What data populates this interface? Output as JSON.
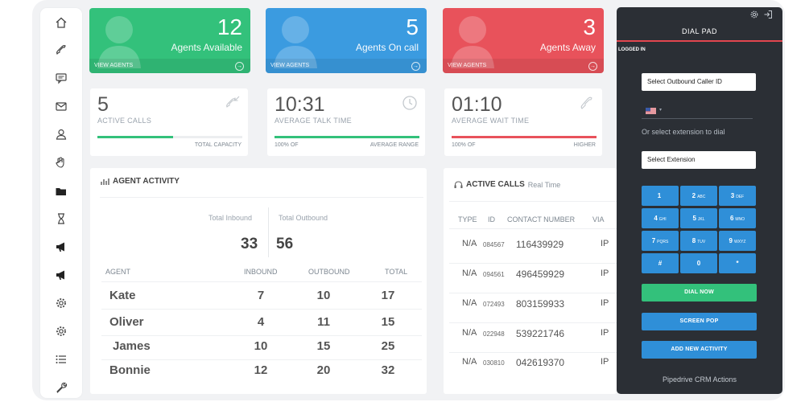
{
  "colors": {
    "green": "#33c17b",
    "blue": "#3b9be0",
    "red": "#e8525b",
    "dial_bg": "#2b2f35",
    "key_blue": "#2f8fd8"
  },
  "sidebar": {
    "icons": [
      "home-icon",
      "phone-icon",
      "chat-icon",
      "mail-icon",
      "user-icon",
      "hand-icon",
      "folder-icon",
      "hourglass-icon",
      "megaphone-icon",
      "megaphone-icon",
      "gear-icon",
      "gear-icon",
      "list-icon",
      "wrench-icon"
    ]
  },
  "stats": [
    {
      "value": "12",
      "label": "Agents Available",
      "link": "VIEW AGENTS"
    },
    {
      "value": "5",
      "label": "Agents On call",
      "link": "VIEW AGENTS"
    },
    {
      "value": "3",
      "label": "Agents Away",
      "link": "VIEW AGENTS"
    }
  ],
  "metrics": [
    {
      "value": "5",
      "label": "ACTIVE CALLS",
      "foot_left": "",
      "foot_right": "TOTAL CAPACITY",
      "progress": 0.52
    },
    {
      "value": "10:31",
      "label": "AVERAGE TALK TIME",
      "foot_left": "100% OF",
      "foot_right": "AVERAGE RANGE",
      "progress": 1.0
    },
    {
      "value": "01:10",
      "label": "AVERAGE WAIT TIME",
      "foot_left": "100% OF",
      "foot_right": "HIGHER",
      "progress": 1.0
    }
  ],
  "agent_activity": {
    "title": "AGENT ACTIVITY",
    "total_inbound_label": "Total Inbound",
    "total_outbound_label": "Total Outbound",
    "total_inbound": "33",
    "total_outbound": "56",
    "headers": [
      "AGENT",
      "INBOUND",
      "OUTBOUND",
      "TOTAL"
    ],
    "rows": [
      {
        "agent": "Kate",
        "inbound": "7",
        "outbound": "10",
        "total": "17"
      },
      {
        "agent": "Oliver",
        "inbound": "4",
        "outbound": "11",
        "total": "15"
      },
      {
        "agent": "James",
        "inbound": "10",
        "outbound": "15",
        "total": "25"
      },
      {
        "agent": "Bonnie",
        "inbound": "12",
        "outbound": "20",
        "total": "32"
      }
    ]
  },
  "active_calls": {
    "title": "ACTIVE CALLS",
    "subtitle": "Real Time",
    "headers": [
      "TYPE",
      "ID",
      "CONTACT NUMBER",
      "VIA"
    ],
    "rows": [
      {
        "type": "N/A",
        "id": "084567",
        "number": "116439929",
        "via": "IP"
      },
      {
        "type": "N/A",
        "id": "094561",
        "number": "496459929",
        "via": "IP"
      },
      {
        "type": "N/A",
        "id": "072493",
        "number": "803159933",
        "via": "IP"
      },
      {
        "type": "N/A",
        "id": "022948",
        "number": "539221746",
        "via": "IP"
      },
      {
        "type": "N/A",
        "id": "030810",
        "number": "042619370",
        "via": "IP"
      }
    ]
  },
  "dialpad": {
    "title": "DIAL PAD",
    "status": "LOGGED IN",
    "caller_id_select": "Select Outbound Caller ID",
    "or_text": "Or select extension to dial",
    "extension_select": "Select Extension",
    "keys": [
      {
        "digit": "1",
        "letters": ""
      },
      {
        "digit": "2",
        "letters": "ABC"
      },
      {
        "digit": "3",
        "letters": "DEF"
      },
      {
        "digit": "4",
        "letters": "GHI"
      },
      {
        "digit": "5",
        "letters": "JKL"
      },
      {
        "digit": "6",
        "letters": "MNO"
      },
      {
        "digit": "7",
        "letters": "PQRS"
      },
      {
        "digit": "8",
        "letters": "TUV"
      },
      {
        "digit": "9",
        "letters": "WXYZ"
      },
      {
        "digit": "#",
        "letters": ""
      },
      {
        "digit": "0",
        "letters": ""
      },
      {
        "digit": "*",
        "letters": ""
      }
    ],
    "dial_now": "DIAL NOW",
    "screen_pop": "SCREEN POP",
    "add_activity": "ADD NEW ACTIVITY",
    "footer": "Pipedrive CRM Actions"
  }
}
